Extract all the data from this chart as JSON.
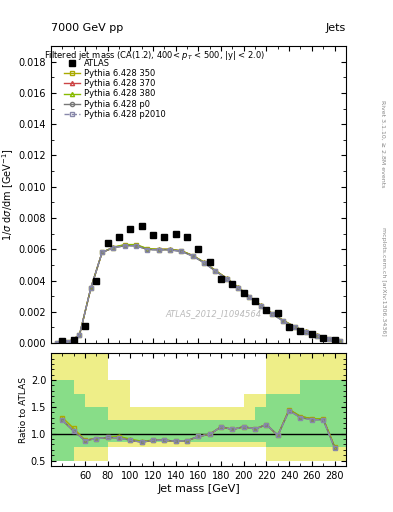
{
  "title_top": "7000 GeV pp",
  "title_top_right": "Jets",
  "plot_title": "Filtered jet mass (CA(1.2), 400< p_{T} < 500, |y| < 2.0)",
  "xlabel": "Jet mass [GeV]",
  "ylabel_main": "1/σ dσ/dm [GeV^{-1}]",
  "ylabel_ratio": "Ratio to ATLAS",
  "watermark": "ATLAS_2012_I1094564",
  "right_label_top": "Rivet 3.1.10, ≥ 2.8M events",
  "right_label_bot": "mcplots.cern.ch [arXiv:1306.3436]",
  "atlas_x": [
    40,
    50,
    60,
    70,
    80,
    90,
    100,
    110,
    120,
    130,
    140,
    150,
    160,
    170,
    180,
    190,
    200,
    210,
    220,
    230,
    240,
    250,
    260,
    270,
    280
  ],
  "atlas_y": [
    0.0001,
    0.0002,
    0.0011,
    0.004,
    0.0064,
    0.0068,
    0.0073,
    0.0075,
    0.0069,
    0.0068,
    0.007,
    0.0068,
    0.006,
    0.0052,
    0.0041,
    0.0038,
    0.0032,
    0.0027,
    0.0021,
    0.00195,
    0.001,
    0.00075,
    0.00055,
    0.00035,
    0.00018
  ],
  "mc_x": [
    35,
    45,
    55,
    65,
    75,
    85,
    95,
    105,
    115,
    125,
    135,
    145,
    155,
    165,
    175,
    185,
    195,
    205,
    215,
    225,
    235,
    245,
    255,
    265,
    275,
    285
  ],
  "mc_350_y": [
    1e-05,
    5e-05,
    0.0005,
    0.0035,
    0.0058,
    0.0061,
    0.00625,
    0.00625,
    0.006,
    0.00598,
    0.00598,
    0.00588,
    0.00558,
    0.00515,
    0.00462,
    0.00412,
    0.00355,
    0.00295,
    0.0024,
    0.00187,
    0.00142,
    0.00102,
    0.00072,
    0.00047,
    0.00028,
    0.00013
  ],
  "mc_370_y": [
    1e-05,
    5e-05,
    0.0005,
    0.0035,
    0.0058,
    0.00612,
    0.00628,
    0.00628,
    0.00602,
    0.006,
    0.006,
    0.0059,
    0.0056,
    0.00517,
    0.00464,
    0.00414,
    0.00357,
    0.00297,
    0.00242,
    0.00189,
    0.00144,
    0.00104,
    0.00074,
    0.00049,
    0.00029,
    0.00014
  ],
  "mc_380_y": [
    1e-05,
    5e-05,
    0.0005,
    0.0035,
    0.0058,
    0.00614,
    0.0063,
    0.0063,
    0.00604,
    0.006,
    0.006,
    0.0059,
    0.0056,
    0.00517,
    0.00464,
    0.00414,
    0.00357,
    0.00297,
    0.00242,
    0.00189,
    0.00144,
    0.00104,
    0.00074,
    0.00049,
    0.00029,
    0.00014
  ],
  "mc_p0_y": [
    1e-05,
    5e-05,
    0.0005,
    0.0035,
    0.0058,
    0.0061,
    0.00622,
    0.00622,
    0.00598,
    0.00596,
    0.00596,
    0.00586,
    0.00556,
    0.00513,
    0.0046,
    0.0041,
    0.00353,
    0.00293,
    0.00238,
    0.00185,
    0.0014,
    0.001,
    0.0007,
    0.00045,
    0.00026,
    0.00012
  ],
  "mc_p2010_y": [
    1e-05,
    5e-05,
    0.0005,
    0.0035,
    0.0058,
    0.0061,
    0.00622,
    0.00622,
    0.00598,
    0.00596,
    0.00596,
    0.00586,
    0.00556,
    0.00513,
    0.0046,
    0.0041,
    0.00353,
    0.00293,
    0.00238,
    0.00185,
    0.0014,
    0.001,
    0.0007,
    0.00045,
    0.00026,
    0.00012
  ],
  "ratio_x": [
    40,
    50,
    60,
    70,
    80,
    90,
    100,
    110,
    120,
    130,
    140,
    150,
    160,
    170,
    180,
    190,
    200,
    210,
    220,
    230,
    240,
    250,
    260,
    270,
    280
  ],
  "ratio_350": [
    1.3,
    1.1,
    0.88,
    0.91,
    0.93,
    0.93,
    0.88,
    0.85,
    0.88,
    0.88,
    0.86,
    0.87,
    0.95,
    0.99,
    1.13,
    1.08,
    1.13,
    1.09,
    1.17,
    0.97,
    1.45,
    1.32,
    1.28,
    1.28,
    0.76
  ],
  "ratio_370": [
    1.25,
    1.05,
    0.88,
    0.91,
    0.93,
    0.93,
    0.88,
    0.85,
    0.88,
    0.88,
    0.86,
    0.87,
    0.95,
    0.99,
    1.13,
    1.08,
    1.13,
    1.09,
    1.17,
    0.97,
    1.45,
    1.32,
    1.28,
    1.28,
    0.76
  ],
  "ratio_380": [
    1.25,
    1.05,
    0.88,
    0.91,
    0.93,
    0.95,
    0.9,
    0.86,
    0.88,
    0.88,
    0.86,
    0.87,
    0.95,
    0.99,
    1.13,
    1.08,
    1.13,
    1.09,
    1.17,
    0.97,
    1.45,
    1.32,
    1.28,
    1.28,
    0.76
  ],
  "ratio_p0": [
    1.25,
    1.05,
    0.87,
    0.91,
    0.93,
    0.92,
    0.88,
    0.84,
    0.88,
    0.88,
    0.86,
    0.87,
    0.95,
    0.99,
    1.13,
    1.08,
    1.13,
    1.09,
    1.17,
    0.97,
    1.43,
    1.3,
    1.26,
    1.26,
    0.74
  ],
  "ratio_p2010": [
    1.25,
    1.05,
    0.87,
    0.91,
    0.93,
    0.92,
    0.88,
    0.84,
    0.88,
    0.88,
    0.86,
    0.87,
    0.95,
    0.99,
    1.13,
    1.08,
    1.13,
    1.09,
    1.17,
    0.97,
    1.43,
    1.3,
    1.26,
    1.26,
    0.74
  ],
  "band_edges": [
    30,
    40,
    50,
    60,
    70,
    80,
    90,
    100,
    110,
    120,
    130,
    140,
    150,
    160,
    170,
    180,
    190,
    200,
    210,
    220,
    230,
    240,
    250,
    260,
    270,
    280,
    290
  ],
  "yellow_lo": [
    0.5,
    0.5,
    0.5,
    0.5,
    0.5,
    0.75,
    0.75,
    0.75,
    0.75,
    0.75,
    0.75,
    0.75,
    0.75,
    0.75,
    0.75,
    0.75,
    0.75,
    0.75,
    0.75,
    0.5,
    0.5,
    0.5,
    0.5,
    0.5,
    0.5,
    0.5,
    0.5
  ],
  "yellow_hi": [
    2.5,
    2.5,
    2.5,
    2.5,
    2.5,
    2.0,
    2.0,
    1.5,
    1.5,
    1.5,
    1.5,
    1.5,
    1.5,
    1.5,
    1.5,
    1.5,
    1.5,
    1.75,
    1.75,
    2.5,
    2.5,
    2.5,
    2.5,
    2.5,
    2.5,
    2.5,
    2.5
  ],
  "green_lo": [
    0.5,
    0.5,
    0.75,
    0.75,
    0.75,
    0.85,
    0.85,
    0.85,
    0.85,
    0.85,
    0.85,
    0.85,
    0.85,
    0.85,
    0.85,
    0.85,
    0.85,
    0.85,
    0.85,
    0.75,
    0.75,
    0.75,
    0.75,
    0.75,
    0.75,
    0.75,
    0.5
  ],
  "green_hi": [
    2.0,
    2.0,
    1.75,
    1.5,
    1.5,
    1.25,
    1.25,
    1.25,
    1.25,
    1.25,
    1.25,
    1.25,
    1.25,
    1.25,
    1.25,
    1.25,
    1.25,
    1.25,
    1.5,
    1.75,
    1.75,
    1.75,
    2.0,
    2.0,
    2.0,
    2.0,
    2.0
  ],
  "color_350": "#aaaa00",
  "color_370": "#cc4444",
  "color_380": "#88bb00",
  "color_p0": "#777777",
  "color_p2010": "#8888aa",
  "color_atlas": "#000000",
  "color_yellow_band": "#eeee88",
  "color_green_band": "#88dd88",
  "xlim": [
    30,
    290
  ],
  "ylim_main": [
    0,
    0.019
  ],
  "ylim_ratio": [
    0.4,
    2.5
  ],
  "yticks_main": [
    0,
    0.002,
    0.004,
    0.006,
    0.008,
    0.01,
    0.012,
    0.014,
    0.016,
    0.018
  ],
  "yticks_ratio": [
    0.5,
    1.0,
    1.5,
    2.0
  ],
  "xticks_main": [
    60,
    80,
    100,
    120,
    140,
    160,
    180,
    200,
    220,
    240,
    260,
    280
  ],
  "xticks_ratio": [
    60,
    80,
    100,
    120,
    140,
    160,
    180,
    200,
    220,
    240,
    260,
    280
  ]
}
